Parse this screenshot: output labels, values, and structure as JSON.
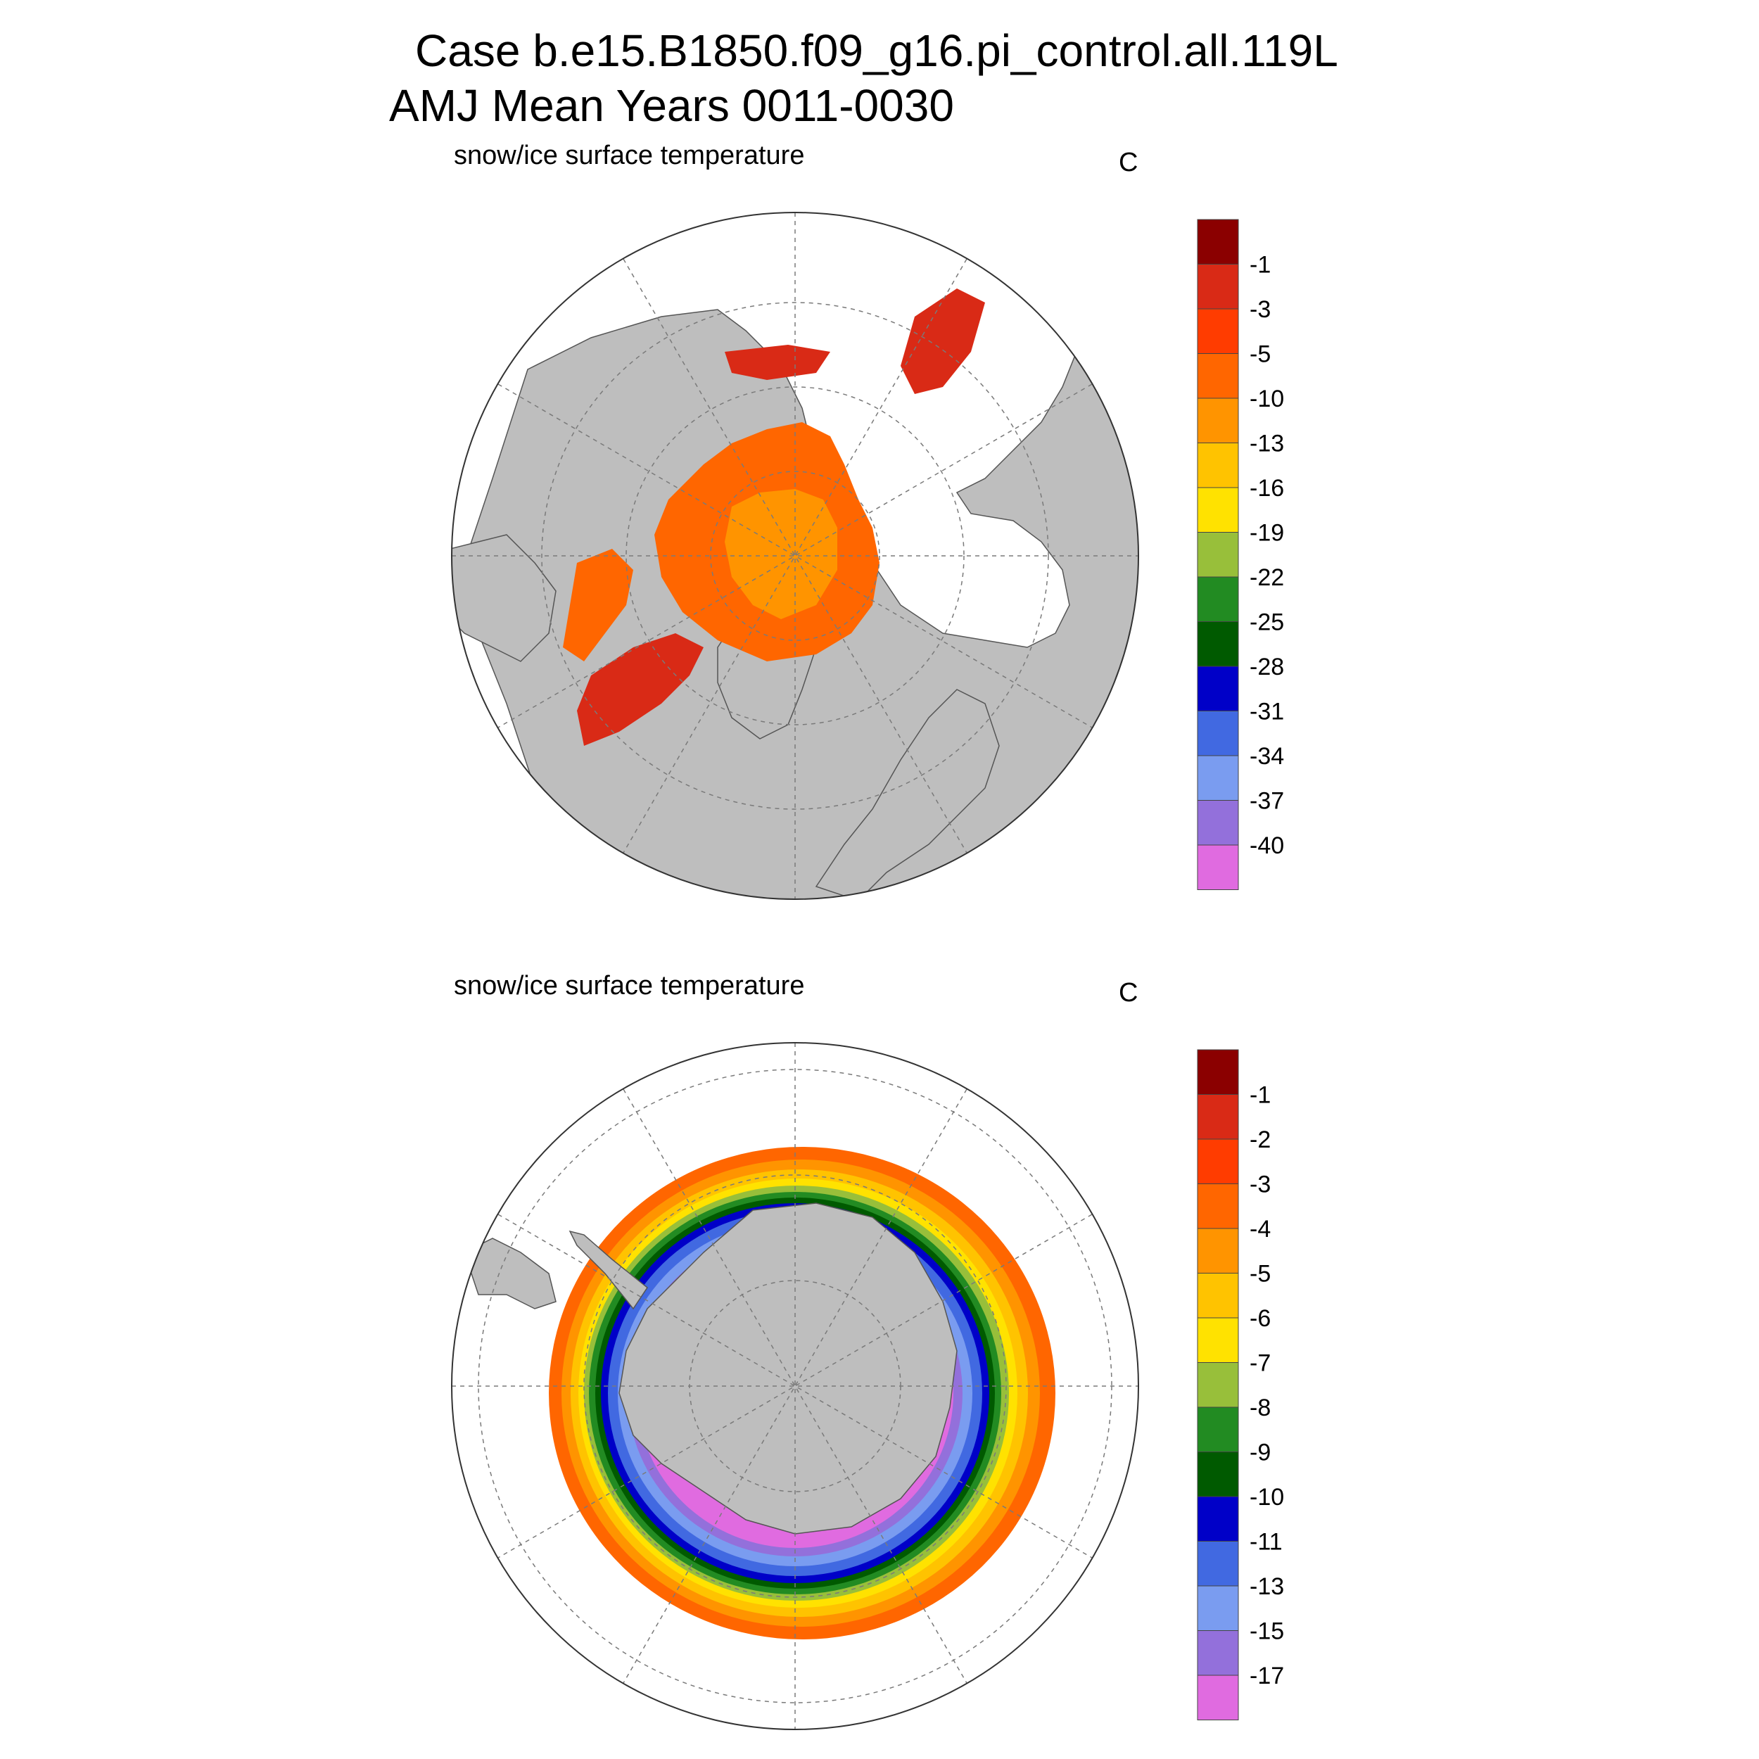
{
  "title_line1": "Case b.e15.B1850.f09_g16.pi_control.all.119L",
  "title_line2": "AMJ Mean    Years 0011-0030",
  "colors": {
    "land": "#bebebe",
    "coast": "#555555",
    "grid": "#7a7a7a",
    "ocean": "#ffffff"
  },
  "panels": [
    {
      "id": "north",
      "hemisphere": "north",
      "subtitle": "snow/ice surface temperature",
      "units": "C",
      "colorbar": {
        "labels": [
          "-1",
          "-3",
          "-5",
          "-10",
          "-13",
          "-16",
          "-19",
          "-22",
          "-25",
          "-28",
          "-31",
          "-34",
          "-37",
          "-40"
        ],
        "colors": [
          "#8b0000",
          "#d92a16",
          "#ff3c00",
          "#ff6600",
          "#ff9400",
          "#ffc300",
          "#ffe200",
          "#98bf3a",
          "#228b22",
          "#005a00",
          "#0000c8",
          "#4169e1",
          "#7a9cf0",
          "#9370db",
          "#e06be0"
        ]
      }
    },
    {
      "id": "south",
      "hemisphere": "south",
      "subtitle": "snow/ice surface temperature",
      "units": "C",
      "colorbar": {
        "labels": [
          "-1",
          "-2",
          "-3",
          "-4",
          "-5",
          "-6",
          "-7",
          "-8",
          "-9",
          "-10",
          "-11",
          "-13",
          "-15",
          "-17"
        ],
        "colors": [
          "#8b0000",
          "#d92a16",
          "#ff3c00",
          "#ff6600",
          "#ff9400",
          "#ffc300",
          "#ffe200",
          "#98bf3a",
          "#228b22",
          "#005a00",
          "#0000c8",
          "#4169e1",
          "#7a9cf0",
          "#9370db",
          "#e06be0"
        ]
      }
    }
  ]
}
